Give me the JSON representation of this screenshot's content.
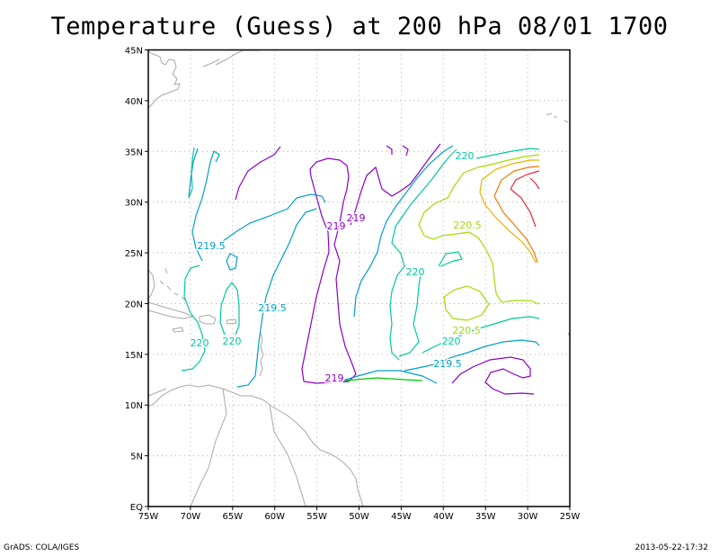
{
  "title": "Temperature (Guess) at 200 hPa 08/01 1700",
  "footer": {
    "left": "GrADS: COLA/IGES",
    "right": "2013-05-22-17:32"
  },
  "axes": {
    "lon_labels": [
      "75W",
      "70W",
      "65W",
      "60W",
      "55W",
      "50W",
      "45W",
      "40W",
      "35W",
      "30W",
      "25W"
    ],
    "lat_labels": [
      "EQ",
      "5N",
      "10N",
      "15N",
      "20N",
      "25N",
      "30N",
      "35N",
      "40N",
      "45N"
    ]
  },
  "colors": {
    "c219": "#8a00c8",
    "c219_5": "#00a0c8",
    "c220": "#00c8a0",
    "c220_5": "#a0dc00",
    "c221": "#e6b400",
    "c221_5": "#f07800",
    "c222": "#e6283c",
    "coast": "#a8a8a8",
    "grid": "#aaaaaa"
  },
  "contour_labels": [
    {
      "text": "219",
      "color": "c219"
    },
    {
      "text": "219",
      "color": "c219"
    },
    {
      "text": "219",
      "color": "c219"
    },
    {
      "text": "219.5",
      "color": "c219_5"
    },
    {
      "text": "219.5",
      "color": "c219_5"
    },
    {
      "text": "219.5",
      "color": "c219_5"
    },
    {
      "text": "220",
      "color": "c220"
    },
    {
      "text": "220",
      "color": "c220"
    },
    {
      "text": "220",
      "color": "c220"
    },
    {
      "text": "220",
      "color": "c220"
    },
    {
      "text": "220",
      "color": "c220"
    },
    {
      "text": "220.5",
      "color": "c220_5"
    },
    {
      "text": "220.5",
      "color": "c220_5"
    }
  ]
}
